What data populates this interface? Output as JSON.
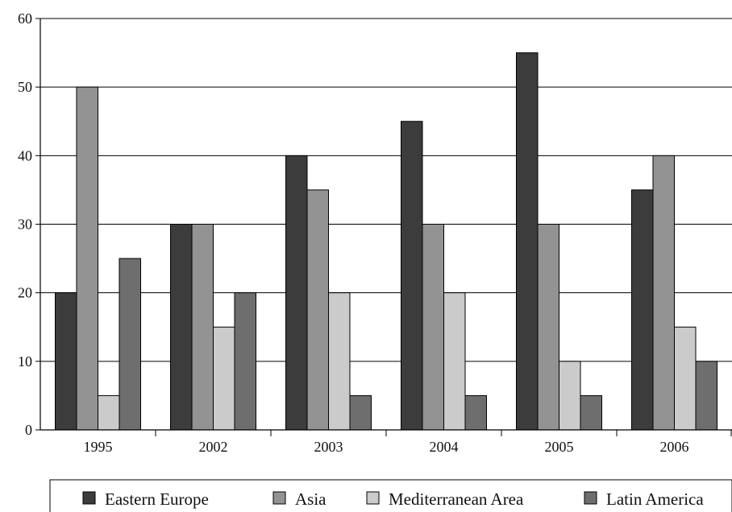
{
  "chart_data": {
    "type": "bar",
    "title": "",
    "xlabel": "",
    "ylabel": "",
    "categories": [
      "1995",
      "2002",
      "2003",
      "2004",
      "2005",
      "2006"
    ],
    "series": [
      {
        "name": "Eastern Europe",
        "color": "#3c3c3c",
        "values": [
          20,
          30,
          40,
          45,
          55,
          35
        ]
      },
      {
        "name": "Asia",
        "color": "#939393",
        "values": [
          50,
          30,
          35,
          30,
          30,
          40
        ]
      },
      {
        "name": "Mediterranean Area",
        "color": "#cbcbcb",
        "values": [
          5,
          15,
          20,
          20,
          10,
          15
        ]
      },
      {
        "name": "Latin America",
        "color": "#6e6e6e",
        "values": [
          25,
          20,
          5,
          5,
          5,
          10
        ]
      }
    ],
    "ylim": [
      0,
      60
    ],
    "yticks": [
      0,
      10,
      20,
      30,
      40,
      50,
      60
    ],
    "grid": "horizontal",
    "legend": "bottom"
  }
}
